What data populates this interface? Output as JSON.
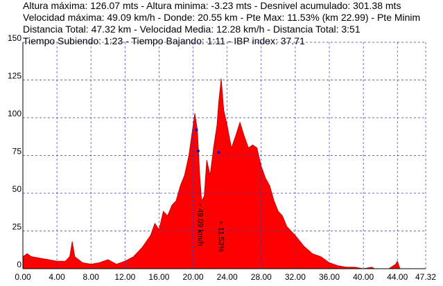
{
  "header": {
    "lines": [
      "Altura máxima: 126.07 mts - Altura minima: -3.23 mts - Desnivel acumulado: 301.38 mts",
      "Velocidad máxima: 49.09 km/h - Donde: 20.55 km - Pte Max: 11.53%  (km 22.99) - Pte Minim",
      "Distancia Total: 47.32 km - Velocidad Media: 12.28 km/h - Distancia Total: 3:51",
      "Tiempo Subiendo: 1:23 - Tiempo Bajando: 1:11 - IBP index: 37.71"
    ]
  },
  "chart_data": {
    "type": "area",
    "color": "#ff0000",
    "grid": true,
    "x": [
      0,
      0.5,
      1,
      2,
      3,
      4,
      5,
      5.5,
      5.8,
      6.1,
      7,
      8,
      9,
      10,
      11,
      12,
      13,
      14,
      15,
      15.5,
      16,
      16.5,
      17,
      17.5,
      18,
      18.5,
      19,
      19.5,
      20,
      20.2,
      20.5,
      20.8,
      21,
      21.3,
      21.6,
      22,
      22.4,
      22.8,
      23,
      23.3,
      23.6,
      24,
      24.5,
      25,
      25.5,
      26,
      26.5,
      27,
      27.5,
      28,
      28.5,
      29,
      29.5,
      30,
      30.5,
      31,
      32,
      33,
      34,
      35,
      36,
      37,
      38,
      39,
      40,
      41,
      42,
      43,
      43.8,
      44,
      44.3,
      45,
      47.32
    ],
    "values": [
      8,
      10,
      8,
      7,
      6,
      5,
      5,
      8,
      18,
      8,
      4,
      3,
      4,
      6,
      3,
      5,
      8,
      14,
      22,
      30,
      26,
      38,
      35,
      42,
      45,
      55,
      62,
      75,
      95,
      103,
      92,
      60,
      45,
      48,
      72,
      62,
      80,
      95,
      110,
      126,
      105,
      95,
      80,
      88,
      97,
      88,
      80,
      82,
      80,
      68,
      60,
      55,
      45,
      38,
      35,
      28,
      22,
      15,
      10,
      8,
      4,
      2,
      1,
      1,
      0,
      1,
      -2,
      0,
      3,
      5,
      0,
      0,
      0
    ],
    "xlim": [
      0,
      47.32
    ],
    "xticks": [
      {
        "value": 0,
        "label": "0.00"
      },
      {
        "value": 4,
        "label": "4.00"
      },
      {
        "value": 8,
        "label": "8.00"
      },
      {
        "value": 12,
        "label": "12.00"
      },
      {
        "value": 16,
        "label": "16.00"
      },
      {
        "value": 20,
        "label": "20.00"
      },
      {
        "value": 24,
        "label": "24.00"
      },
      {
        "value": 28,
        "label": "28.00"
      },
      {
        "value": 32,
        "label": "32.00"
      },
      {
        "value": 36,
        "label": "36.00"
      },
      {
        "value": 40,
        "label": "40.00"
      },
      {
        "value": 44,
        "label": "44.00"
      },
      47.32
    ],
    "ylim": [
      0,
      150
    ],
    "yticks": [
      0,
      25,
      50,
      75,
      100,
      125,
      150
    ],
    "markers": {
      "color": "#0000cc",
      "x": [
        20.4,
        20.6,
        23
      ],
      "y": [
        92,
        78,
        77
      ]
    },
    "annotations": [
      {
        "x": 20.55,
        "y": 43,
        "text": "- 49.09 km/h"
      },
      {
        "x": 22.99,
        "y": 32,
        "text": "+ 11.53%"
      }
    ]
  }
}
